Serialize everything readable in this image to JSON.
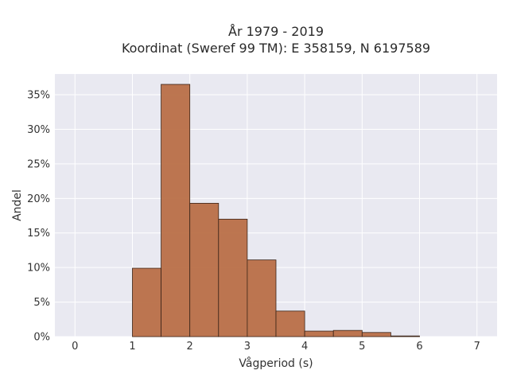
{
  "chart_data": {
    "type": "bar",
    "title": "År 1979 - 2019",
    "subtitle": "Koordinat (Sweref 99 TM): E 358159, N 6197589",
    "xlabel": "Vågperiod (s)",
    "ylabel": "Andel",
    "xlim": [
      -0.35,
      7.35
    ],
    "ylim": [
      0,
      0.38
    ],
    "x_ticks": [
      0,
      1,
      2,
      3,
      4,
      5,
      6,
      7
    ],
    "x_tick_labels": [
      "0",
      "1",
      "2",
      "3",
      "4",
      "5",
      "6",
      "7"
    ],
    "y_ticks": [
      0,
      0.05,
      0.1,
      0.15,
      0.2,
      0.25,
      0.3,
      0.35
    ],
    "y_tick_labels": [
      "0%",
      "5%",
      "10%",
      "15%",
      "20%",
      "25%",
      "30%",
      "35%"
    ],
    "grid": true,
    "bin_width": 0.5,
    "bins": [
      {
        "x0": 1.0,
        "x1": 1.5,
        "value": 0.099
      },
      {
        "x0": 1.5,
        "x1": 2.0,
        "value": 0.365
      },
      {
        "x0": 2.0,
        "x1": 2.5,
        "value": 0.193
      },
      {
        "x0": 2.5,
        "x1": 3.0,
        "value": 0.17
      },
      {
        "x0": 3.0,
        "x1": 3.5,
        "value": 0.111
      },
      {
        "x0": 3.5,
        "x1": 4.0,
        "value": 0.037
      },
      {
        "x0": 4.0,
        "x1": 4.5,
        "value": 0.008
      },
      {
        "x0": 4.5,
        "x1": 5.0,
        "value": 0.009
      },
      {
        "x0": 5.0,
        "x1": 5.5,
        "value": 0.006
      },
      {
        "x0": 5.5,
        "x1": 6.0,
        "value": 0.001
      }
    ],
    "colors": {
      "bar_fill": "#b96f47",
      "bar_stroke": "#3a2418",
      "plot_bg": "#e9e9f1",
      "grid": "#ffffff"
    }
  }
}
